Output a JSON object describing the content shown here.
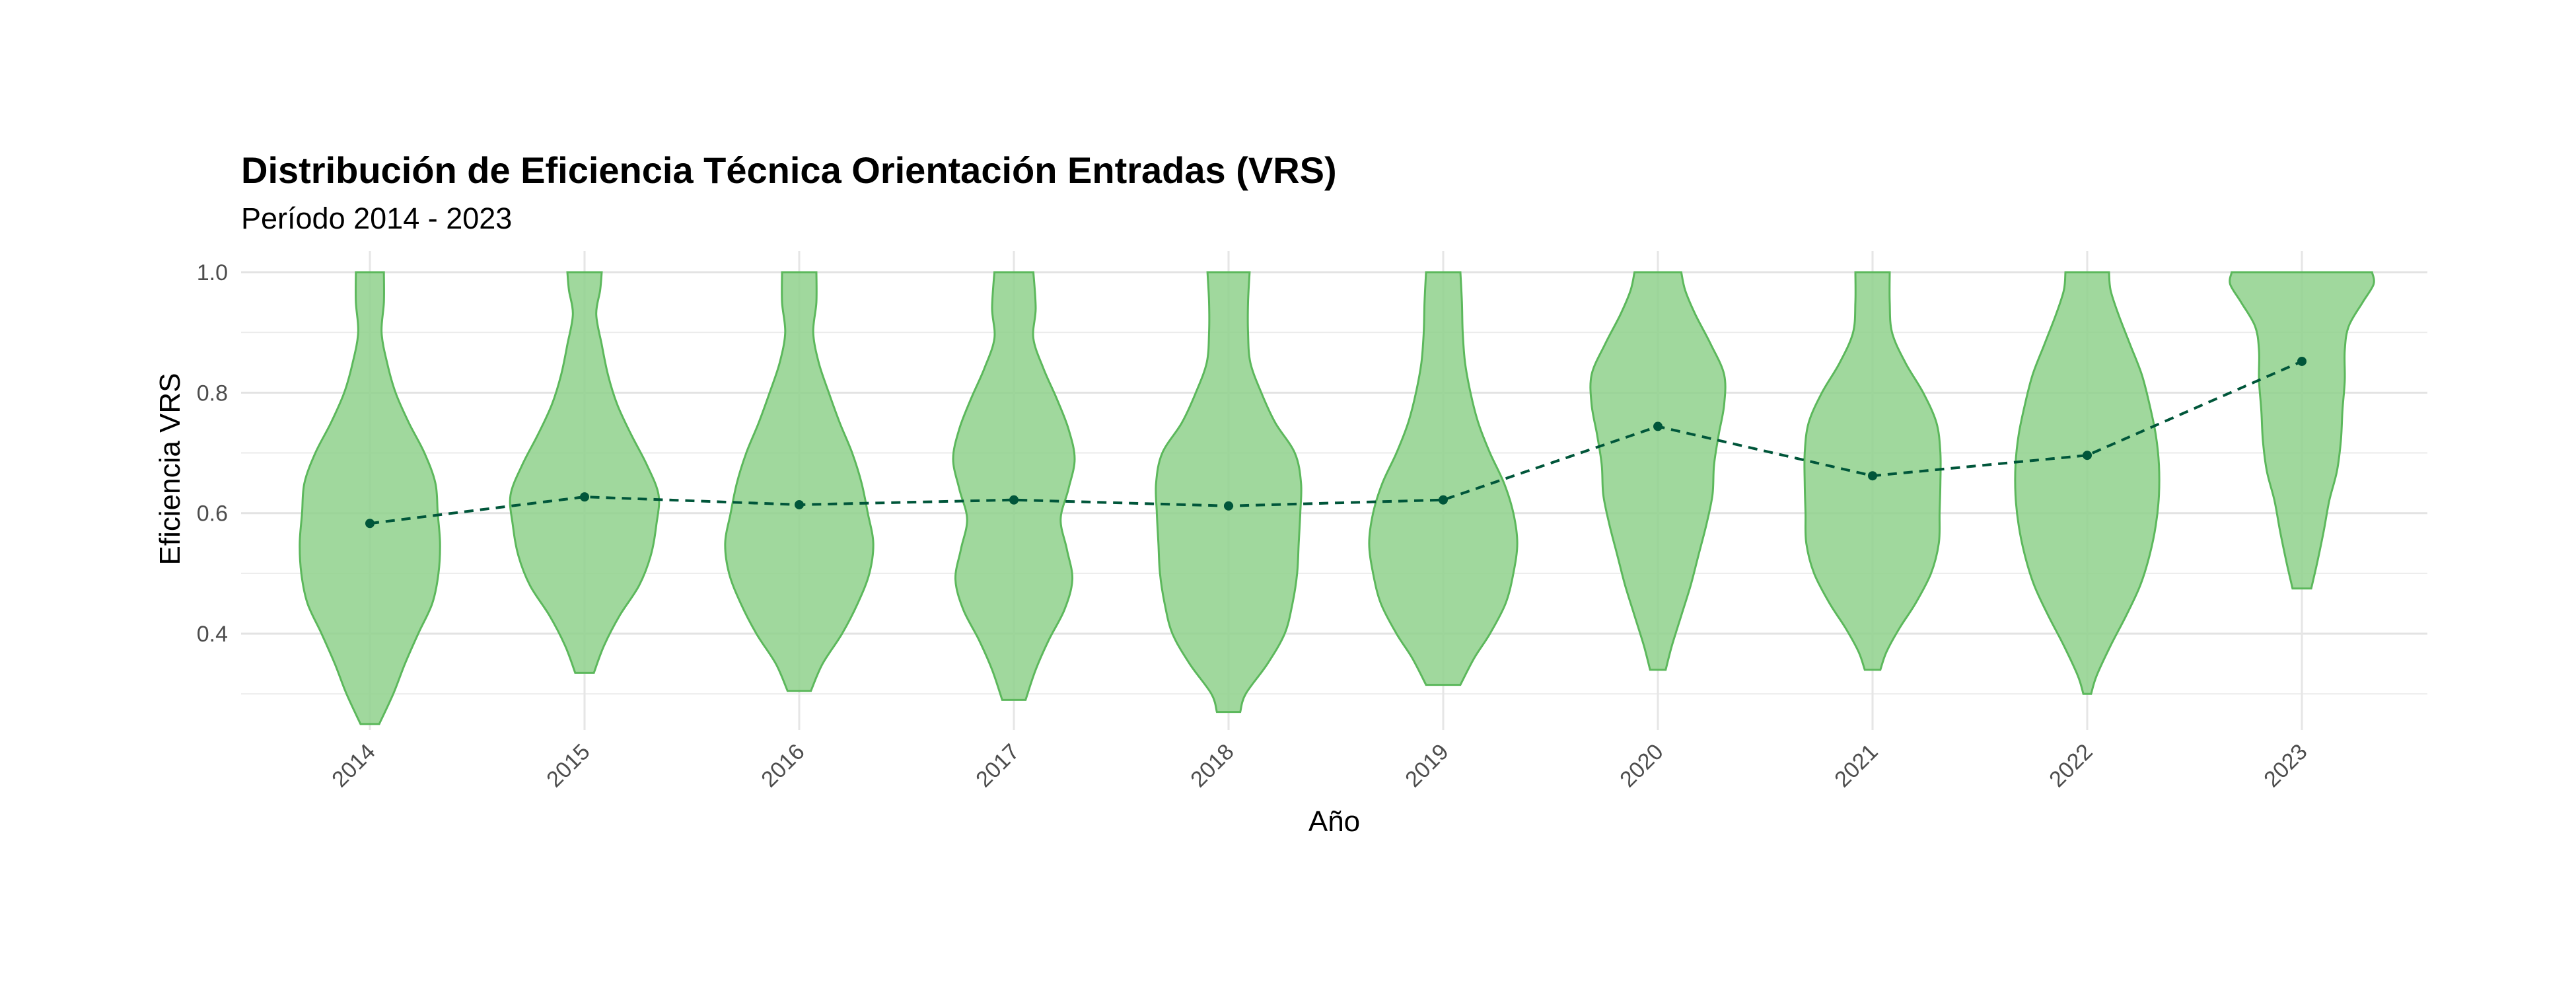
{
  "chart_data": {
    "type": "violin",
    "title": "Distribución de Eficiencia Técnica Orientación Entradas (VRS)",
    "subtitle": "Período 2014 - 2023",
    "xlabel": "Año",
    "ylabel": "Eficiencia VRS",
    "categories": [
      "2014",
      "2015",
      "2016",
      "2017",
      "2018",
      "2019",
      "2020",
      "2021",
      "2022",
      "2023"
    ],
    "ylim": [
      0.24,
      1.03
    ],
    "yticks": [
      0.4,
      0.6,
      0.8,
      1.0
    ],
    "ytick_labels": [
      "0.4",
      "0.6",
      "0.8",
      "1.0"
    ],
    "grid": true,
    "colors": {
      "violin_fill": "#8fd18c",
      "violin_stroke": "#5cb85c",
      "mean_line": "#00563a"
    },
    "mean_line": {
      "style": "dashed",
      "values": [
        0.583,
        0.627,
        0.614,
        0.622,
        0.612,
        0.622,
        0.744,
        0.662,
        0.696,
        0.852
      ]
    },
    "violins": [
      {
        "category": "2014",
        "min": 0.25,
        "max": 1.0,
        "density": [
          [
            0.25,
            0.12
          ],
          [
            0.3,
            0.3
          ],
          [
            0.35,
            0.45
          ],
          [
            0.4,
            0.62
          ],
          [
            0.45,
            0.8
          ],
          [
            0.5,
            0.88
          ],
          [
            0.55,
            0.9
          ],
          [
            0.6,
            0.87
          ],
          [
            0.65,
            0.84
          ],
          [
            0.7,
            0.7
          ],
          [
            0.75,
            0.5
          ],
          [
            0.8,
            0.33
          ],
          [
            0.85,
            0.22
          ],
          [
            0.9,
            0.15
          ],
          [
            0.95,
            0.18
          ],
          [
            1.0,
            0.18
          ]
        ]
      },
      {
        "category": "2015",
        "min": 0.335,
        "max": 1.0,
        "density": [
          [
            0.335,
            0.12
          ],
          [
            0.38,
            0.25
          ],
          [
            0.43,
            0.45
          ],
          [
            0.48,
            0.7
          ],
          [
            0.53,
            0.85
          ],
          [
            0.58,
            0.92
          ],
          [
            0.63,
            0.95
          ],
          [
            0.68,
            0.8
          ],
          [
            0.73,
            0.6
          ],
          [
            0.78,
            0.42
          ],
          [
            0.83,
            0.3
          ],
          [
            0.88,
            0.22
          ],
          [
            0.93,
            0.15
          ],
          [
            0.97,
            0.2
          ],
          [
            1.0,
            0.22
          ]
        ]
      },
      {
        "category": "2016",
        "min": 0.305,
        "max": 1.0,
        "density": [
          [
            0.305,
            0.15
          ],
          [
            0.35,
            0.3
          ],
          [
            0.4,
            0.55
          ],
          [
            0.45,
            0.75
          ],
          [
            0.5,
            0.9
          ],
          [
            0.55,
            0.95
          ],
          [
            0.6,
            0.88
          ],
          [
            0.65,
            0.8
          ],
          [
            0.7,
            0.68
          ],
          [
            0.75,
            0.52
          ],
          [
            0.8,
            0.38
          ],
          [
            0.85,
            0.25
          ],
          [
            0.9,
            0.18
          ],
          [
            0.95,
            0.22
          ],
          [
            1.0,
            0.22
          ]
        ]
      },
      {
        "category": "2017",
        "min": 0.29,
        "max": 1.0,
        "density": [
          [
            0.29,
            0.15
          ],
          [
            0.34,
            0.28
          ],
          [
            0.39,
            0.45
          ],
          [
            0.44,
            0.65
          ],
          [
            0.49,
            0.75
          ],
          [
            0.54,
            0.68
          ],
          [
            0.59,
            0.6
          ],
          [
            0.64,
            0.7
          ],
          [
            0.69,
            0.78
          ],
          [
            0.74,
            0.7
          ],
          [
            0.79,
            0.55
          ],
          [
            0.84,
            0.38
          ],
          [
            0.89,
            0.25
          ],
          [
            0.94,
            0.28
          ],
          [
            1.0,
            0.25
          ]
        ]
      },
      {
        "category": "2018",
        "min": 0.27,
        "max": 1.0,
        "density": [
          [
            0.27,
            0.15
          ],
          [
            0.3,
            0.22
          ],
          [
            0.35,
            0.5
          ],
          [
            0.4,
            0.72
          ],
          [
            0.45,
            0.82
          ],
          [
            0.5,
            0.88
          ],
          [
            0.55,
            0.9
          ],
          [
            0.6,
            0.92
          ],
          [
            0.65,
            0.93
          ],
          [
            0.7,
            0.85
          ],
          [
            0.75,
            0.6
          ],
          [
            0.8,
            0.42
          ],
          [
            0.85,
            0.28
          ],
          [
            0.9,
            0.25
          ],
          [
            0.95,
            0.25
          ],
          [
            1.0,
            0.27
          ]
        ]
      },
      {
        "category": "2019",
        "min": 0.315,
        "max": 1.0,
        "density": [
          [
            0.315,
            0.22
          ],
          [
            0.36,
            0.4
          ],
          [
            0.4,
            0.6
          ],
          [
            0.45,
            0.8
          ],
          [
            0.5,
            0.9
          ],
          [
            0.55,
            0.95
          ],
          [
            0.6,
            0.9
          ],
          [
            0.65,
            0.78
          ],
          [
            0.7,
            0.6
          ],
          [
            0.75,
            0.45
          ],
          [
            0.8,
            0.35
          ],
          [
            0.85,
            0.28
          ],
          [
            0.9,
            0.25
          ],
          [
            0.95,
            0.24
          ],
          [
            1.0,
            0.22
          ]
        ]
      },
      {
        "category": "2020",
        "min": 0.34,
        "max": 1.0,
        "density": [
          [
            0.34,
            0.1
          ],
          [
            0.38,
            0.18
          ],
          [
            0.43,
            0.3
          ],
          [
            0.48,
            0.42
          ],
          [
            0.53,
            0.52
          ],
          [
            0.58,
            0.62
          ],
          [
            0.63,
            0.7
          ],
          [
            0.68,
            0.72
          ],
          [
            0.73,
            0.78
          ],
          [
            0.78,
            0.85
          ],
          [
            0.83,
            0.85
          ],
          [
            0.88,
            0.68
          ],
          [
            0.93,
            0.48
          ],
          [
            0.97,
            0.35
          ],
          [
            1.0,
            0.3
          ]
        ]
      },
      {
        "category": "2021",
        "min": 0.34,
        "max": 1.0,
        "density": [
          [
            0.34,
            0.1
          ],
          [
            0.37,
            0.18
          ],
          [
            0.41,
            0.35
          ],
          [
            0.45,
            0.55
          ],
          [
            0.5,
            0.75
          ],
          [
            0.55,
            0.85
          ],
          [
            0.6,
            0.86
          ],
          [
            0.65,
            0.87
          ],
          [
            0.7,
            0.87
          ],
          [
            0.75,
            0.82
          ],
          [
            0.8,
            0.65
          ],
          [
            0.85,
            0.42
          ],
          [
            0.9,
            0.25
          ],
          [
            0.95,
            0.22
          ],
          [
            1.0,
            0.22
          ]
        ]
      },
      {
        "category": "2022",
        "min": 0.3,
        "max": 1.0,
        "density": [
          [
            0.3,
            0.05
          ],
          [
            0.33,
            0.12
          ],
          [
            0.38,
            0.3
          ],
          [
            0.43,
            0.5
          ],
          [
            0.48,
            0.68
          ],
          [
            0.53,
            0.8
          ],
          [
            0.58,
            0.88
          ],
          [
            0.63,
            0.92
          ],
          [
            0.68,
            0.92
          ],
          [
            0.73,
            0.88
          ],
          [
            0.78,
            0.8
          ],
          [
            0.83,
            0.7
          ],
          [
            0.88,
            0.55
          ],
          [
            0.93,
            0.4
          ],
          [
            0.97,
            0.3
          ],
          [
            1.0,
            0.28
          ]
        ]
      },
      {
        "category": "2023",
        "min": 0.475,
        "max": 1.0,
        "density": [
          [
            0.475,
            0.12
          ],
          [
            0.52,
            0.2
          ],
          [
            0.57,
            0.28
          ],
          [
            0.62,
            0.35
          ],
          [
            0.67,
            0.45
          ],
          [
            0.72,
            0.5
          ],
          [
            0.77,
            0.52
          ],
          [
            0.82,
            0.55
          ],
          [
            0.87,
            0.55
          ],
          [
            0.91,
            0.6
          ],
          [
            0.95,
            0.78
          ],
          [
            0.98,
            0.92
          ],
          [
            1.0,
            0.9
          ]
        ]
      }
    ]
  }
}
